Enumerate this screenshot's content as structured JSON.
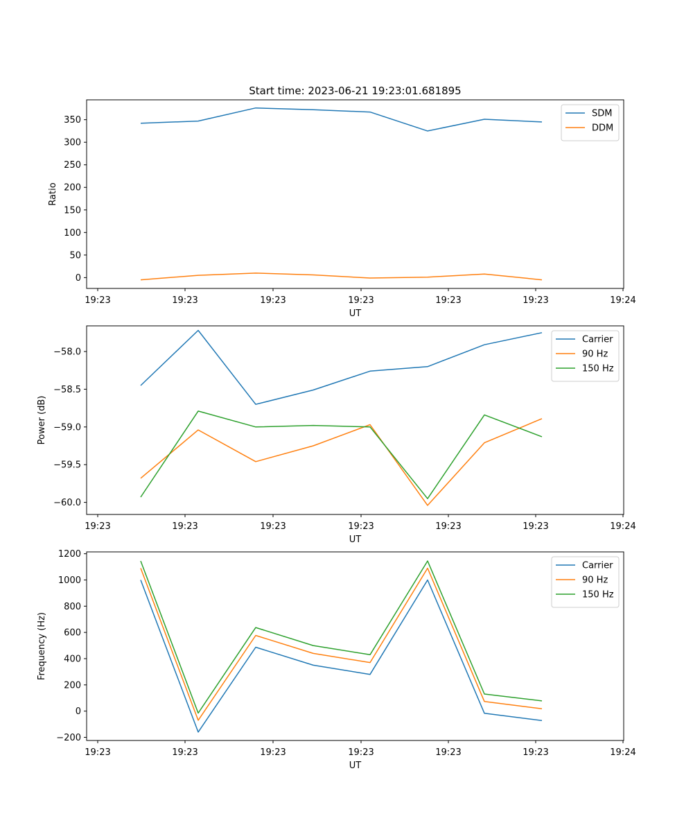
{
  "figure": {
    "title": "Start time: 2023-06-21 19:23:01.681895"
  },
  "chart_data": [
    {
      "type": "line",
      "title": "Start time: 2023-06-21 19:23:01.681895",
      "xlabel": "UT",
      "ylabel": "Ratio",
      "x_tick_labels": [
        "19:23",
        "19:23",
        "19:23",
        "19:23",
        "19:23",
        "19:23",
        "19:24"
      ],
      "y_ticks": [
        0,
        50,
        100,
        150,
        200,
        250,
        300,
        350
      ],
      "ylim": [
        -24,
        394
      ],
      "grid": false,
      "legend_position": "top-right",
      "series": [
        {
          "name": "SDM",
          "color": "#1f77b4",
          "values": [
            342,
            347,
            376,
            372,
            367,
            325,
            351,
            345
          ]
        },
        {
          "name": "DDM",
          "color": "#ff7f0e",
          "values": [
            -5,
            5,
            10,
            6,
            -1,
            1,
            8,
            -5
          ]
        }
      ]
    },
    {
      "type": "line",
      "xlabel": "UT",
      "ylabel": "Power (dB)",
      "x_tick_labels": [
        "19:23",
        "19:23",
        "19:23",
        "19:23",
        "19:23",
        "19:23",
        "19:24"
      ],
      "y_ticks": [
        -60.0,
        -59.5,
        -59.0,
        -58.5,
        -58.0
      ],
      "y_tick_labels": [
        "−60.0",
        "−59.5",
        "−59.0",
        "−58.5",
        "−58.0"
      ],
      "ylim": [
        -60.16,
        -57.66
      ],
      "grid": false,
      "legend_position": "top-right",
      "series": [
        {
          "name": "Carrier",
          "color": "#1f77b4",
          "values": [
            -58.45,
            -57.72,
            -58.7,
            -58.51,
            -58.26,
            -58.2,
            -57.91,
            -57.75
          ]
        },
        {
          "name": "90 Hz",
          "color": "#ff7f0e",
          "values": [
            -59.68,
            -59.04,
            -59.46,
            -59.25,
            -58.97,
            -60.04,
            -59.21,
            -58.89
          ]
        },
        {
          "name": "150 Hz",
          "color": "#2ca02c",
          "values": [
            -59.93,
            -58.79,
            -59.0,
            -58.98,
            -59.0,
            -59.95,
            -58.84,
            -59.13
          ]
        }
      ]
    },
    {
      "type": "line",
      "xlabel": "UT",
      "ylabel": "Frequency (Hz)",
      "x_tick_labels": [
        "19:23",
        "19:23",
        "19:23",
        "19:23",
        "19:23",
        "19:23",
        "19:24"
      ],
      "y_ticks": [
        -200,
        0,
        200,
        400,
        600,
        800,
        1000,
        1200
      ],
      "y_tick_labels": [
        "−200",
        "0",
        "200",
        "400",
        "600",
        "800",
        "1000",
        "1200"
      ],
      "ylim": [
        -224,
        1214
      ],
      "grid": false,
      "legend_position": "top-right",
      "series": [
        {
          "name": "Carrier",
          "color": "#1f77b4",
          "values": [
            1000,
            -160,
            487,
            350,
            280,
            1000,
            -17,
            -72
          ]
        },
        {
          "name": "90 Hz",
          "color": "#ff7f0e",
          "values": [
            1090,
            -70,
            577,
            440,
            370,
            1090,
            73,
            18
          ]
        },
        {
          "name": "150 Hz",
          "color": "#2ca02c",
          "values": [
            1145,
            -15,
            637,
            500,
            430,
            1145,
            130,
            78
          ]
        }
      ]
    }
  ]
}
